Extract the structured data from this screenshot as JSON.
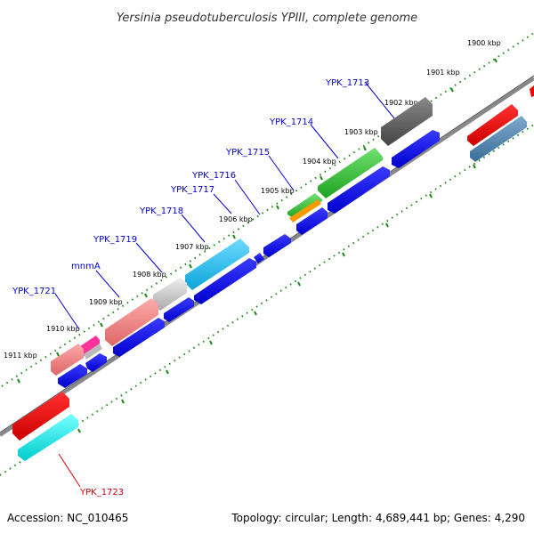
{
  "title": "Yersinia pseudotuberculosis YPIII, complete genome",
  "footer": {
    "accession": "Accession: NC_010465",
    "topology": "Topology: circular; Length: 4,689,441 bp; Genes: 4,290"
  },
  "kbp_labels": [
    "1900 kbp",
    "1901 kbp",
    "1902 kbp",
    "1903 kbp",
    "1904 kbp",
    "1905 kbp",
    "1906 kbp",
    "1907 kbp",
    "1908 kbp",
    "1909 kbp",
    "1910 kbp",
    "1911 kbp"
  ],
  "gene_labels": [
    "YPK_1713",
    "YPK_1714",
    "YPK_1715",
    "YPK_1716",
    "YPK_1717",
    "YPK_1718",
    "YPK_1719",
    "mnmA",
    "YPK_1721",
    "YPK_1723"
  ],
  "colors": {
    "blue": "#0000ee",
    "label_blue": "#0000cc",
    "label_red": "#cc0000",
    "tick_green": "#1a8a1a",
    "backbone": "#888888"
  }
}
